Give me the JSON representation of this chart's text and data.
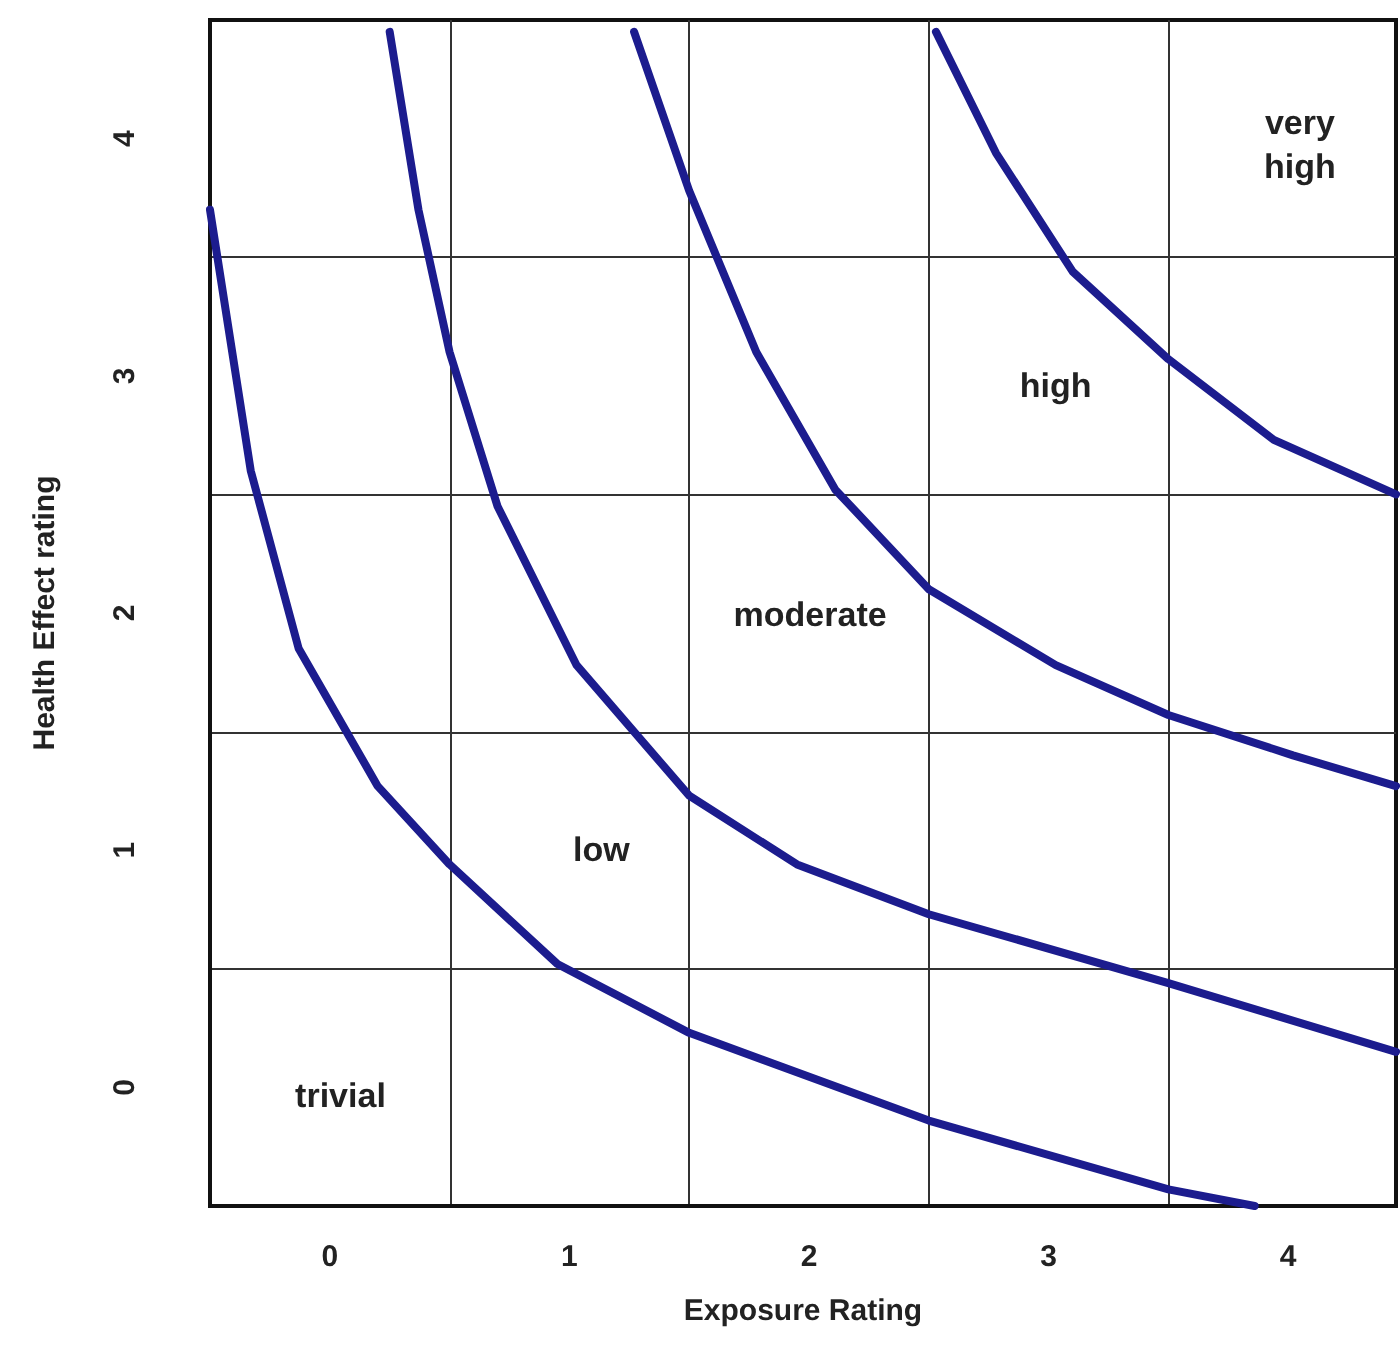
{
  "chart_data": {
    "type": "line",
    "xlabel": "Exposure Rating",
    "ylabel": "Health Effect rating",
    "xlim": [
      -0.5,
      4.45
    ],
    "ylim": [
      -0.5,
      4.5
    ],
    "xticks": [
      0,
      {
        "value": 0.5,
        "label": null
      },
      1,
      {
        "value": 1.5,
        "label": null
      },
      2,
      {
        "value": 2.5,
        "label": null
      },
      3,
      {
        "value": 3.5,
        "label": null
      },
      4
    ],
    "yticks": [
      0,
      {
        "value": 0.5,
        "label": null
      },
      1,
      {
        "value": 1.5,
        "label": null
      },
      2,
      {
        "value": 2.5,
        "label": null
      },
      3,
      {
        "value": 3.5,
        "label": null
      },
      4
    ],
    "grid": true,
    "marker": "none",
    "line_style": "solid",
    "series": [
      {
        "color": "#1c1c8e",
        "x": [
          -0.5,
          -0.33,
          -0.13,
          0.2,
          0.5,
          0.95,
          1.5,
          2.5,
          3.5,
          3.86
        ],
        "values": [
          3.7,
          2.6,
          1.85,
          1.27,
          0.94,
          0.52,
          0.23,
          -0.14,
          -0.43,
          -0.5
        ]
      },
      {
        "color": "#1c1c8e",
        "x": [
          0.25,
          0.37,
          0.5,
          0.7,
          1.03,
          1.5,
          1.95,
          2.5,
          3.5,
          4.45
        ],
        "values": [
          4.45,
          3.7,
          3.1,
          2.45,
          1.78,
          1.23,
          0.94,
          0.73,
          0.44,
          0.15
        ]
      },
      {
        "color": "#1c1c8e",
        "x": [
          1.27,
          1.5,
          1.78,
          2.11,
          2.5,
          3.03,
          3.5,
          4.02,
          4.45
        ],
        "values": [
          4.45,
          3.78,
          3.1,
          2.52,
          2.1,
          1.78,
          1.57,
          1.4,
          1.27
        ]
      },
      {
        "color": "#1c1c8e",
        "x": [
          2.53,
          2.78,
          3.1,
          3.5,
          3.94,
          4.45
        ],
        "values": [
          4.45,
          3.94,
          3.44,
          3.07,
          2.73,
          2.5
        ]
      }
    ],
    "annotations": [
      "trivial",
      "low",
      "moderate",
      "high",
      "very\nhigh"
    ]
  }
}
